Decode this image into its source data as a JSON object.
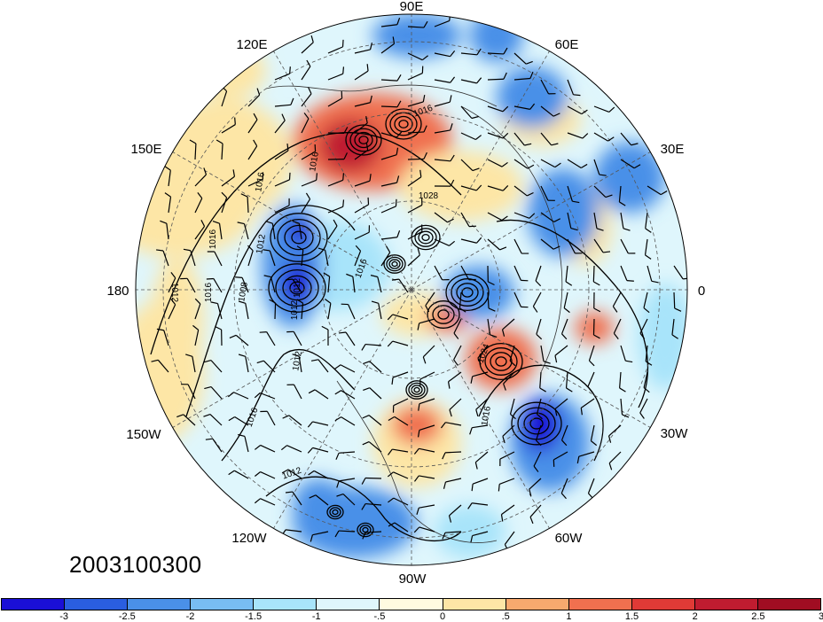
{
  "date_stamp": "2003100300",
  "longitude_labels": [
    {
      "id": "90e",
      "text": "90E"
    },
    {
      "id": "60e",
      "text": "60E"
    },
    {
      "id": "30e",
      "text": "30E"
    },
    {
      "id": "0",
      "text": "0"
    },
    {
      "id": "30w",
      "text": "30W"
    },
    {
      "id": "60w",
      "text": "60W"
    },
    {
      "id": "90w",
      "text": "90W"
    },
    {
      "id": "120w",
      "text": "120W"
    },
    {
      "id": "150w",
      "text": "150W"
    },
    {
      "id": "180",
      "text": "180"
    },
    {
      "id": "150e",
      "text": "150E"
    },
    {
      "id": "120e",
      "text": "120E"
    }
  ],
  "contour_labels": [
    "1016",
    "1028",
    "1016",
    "1016",
    "1012",
    "1016",
    "1012",
    "1016",
    "1008",
    "1012",
    "1012",
    "1016",
    "1012",
    "1024",
    "1016",
    "1016",
    "1012"
  ],
  "colorbar": {
    "colors": [
      "#1a0fd6",
      "#2a5ee0",
      "#4a90e8",
      "#78bdf2",
      "#a8e4fa",
      "#dff6fc",
      "#fffbe0",
      "#fde6a6",
      "#f7a96e",
      "#f0704f",
      "#e03a36",
      "#c01c30",
      "#a00d22"
    ],
    "tick_labels": [
      "-3",
      "-2.5",
      "-2",
      "-1.5",
      "-1",
      "-.5",
      "0",
      ".5",
      "1",
      "1.5",
      "2",
      "2.5",
      "3"
    ]
  },
  "colors": {
    "strong_neg": "#1a0fd6",
    "neg": "#4a90e8",
    "weak_neg": "#a8e4fa",
    "weak_pos": "#fde6a6",
    "pos": "#f0704f",
    "strong_pos": "#c01c30"
  }
}
